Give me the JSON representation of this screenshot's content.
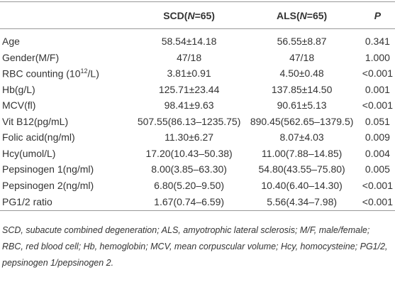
{
  "table": {
    "header": [
      {
        "pre": "SCD(",
        "italic": "N",
        "post": "=65)"
      },
      {
        "pre": "ALS(",
        "italic": "N",
        "post": "=65)"
      },
      {
        "italic": "P"
      }
    ],
    "rows": [
      [
        "Age",
        "58.54±14.18",
        "56.55±8.87",
        "0.341"
      ],
      [
        "Gender(M/F)",
        "47/18",
        "47/18",
        "1.000"
      ],
      [
        {
          "text": "RBC counting (10",
          "sup": "12",
          "tail": "/L)"
        },
        "3.81±0.91",
        "4.50±0.48",
        "<0.001"
      ],
      [
        "Hb(g/L)",
        "125.71±23.44",
        "137.85±14.50",
        "0.001"
      ],
      [
        "MCV(fl)",
        "98.41±9.63",
        "90.61±5.13",
        "<0.001"
      ],
      [
        "Vit B12(pg/mL)",
        "507.55(86.13–1235.75)",
        "890.45(562.65–1379.5)",
        "0.051"
      ],
      [
        "Folic acid(ng/ml)",
        "11.30±6.27",
        "8.07±4.03",
        "0.009"
      ],
      [
        "Hcy(umol/L)",
        "17.20(10.43–50.38)",
        "11.00(7.88–14.85)",
        "0.004"
      ],
      [
        "Pepsinogen 1(ng/ml)",
        "8.00(3.85–63.30)",
        "54.80(43.55–75.80)",
        "0.005"
      ],
      [
        "Pepsinogen 2(ng/ml)",
        "6.80(5.20–9.50)",
        "10.40(6.40–14.30)",
        "<0.001"
      ],
      [
        "PG1/2 ratio",
        "1.67(0.74–6.59)",
        "5.56(4.34–7.98)",
        "<0.001"
      ]
    ],
    "footnote": "SCD, subacute combined degeneration; ALS, amyotrophic lateral sclerosis; M/F, male/female; RBC, red blood cell; Hb, hemoglobin; MCV, mean corpuscular volume; Hcy, homocysteine; PG1/2, pepsinogen 1/pepsinogen 2."
  }
}
